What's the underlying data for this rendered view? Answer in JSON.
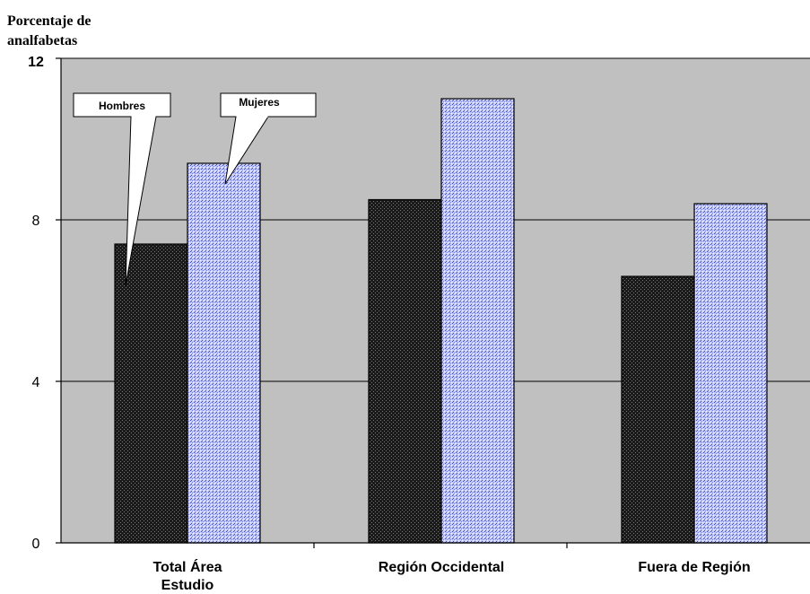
{
  "chart_data": {
    "type": "bar",
    "title": "",
    "ylabel": "Porcentaje de analfabetas",
    "ylabel_lines": [
      "Porcentaje de",
      "analfabetas"
    ],
    "xlabel": "",
    "ylim": [
      0,
      12
    ],
    "yticks": [
      "0",
      "4",
      "8",
      "12"
    ],
    "categories": [
      "Total Área Estudio",
      "Región Occidental",
      "Fuera de Región"
    ],
    "category_lines": [
      [
        "Total Área",
        "Estudio"
      ],
      [
        "Región Occidental"
      ],
      [
        "Fuera de Región"
      ]
    ],
    "series": [
      {
        "name": "Hombres",
        "values": [
          7.4,
          8.5,
          6.6
        ],
        "color": "#1a1a1a"
      },
      {
        "name": "Mujeres",
        "values": [
          9.4,
          11.0,
          8.4
        ],
        "color": "#aab4f0"
      }
    ],
    "grid": true,
    "plot_background": "#c0c0c0",
    "legend": "callouts"
  }
}
